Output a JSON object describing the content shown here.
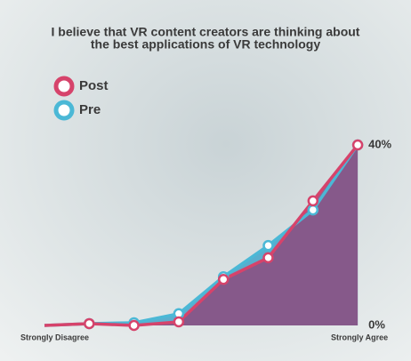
{
  "chart_data": {
    "type": "area",
    "title": [
      "I believe that VR content creators are thinking about",
      "the best applications of VR technology"
    ],
    "categories": [
      "Strongly Disagree",
      null,
      null,
      null,
      null,
      null,
      null,
      "Strongly Agree"
    ],
    "series": [
      {
        "name": "Pre",
        "color": "#4bb8d6",
        "values": [
          0,
          0.4,
          0.6,
          2.6,
          10.8,
          17.7,
          25.6,
          40
        ]
      },
      {
        "name": "Post",
        "color": "#d6436b",
        "values": [
          0,
          0.4,
          0,
          0.8,
          10.2,
          15,
          27.6,
          40
        ]
      }
    ],
    "ylim": [
      0,
      40
    ],
    "yticks": [
      {
        "value": 0,
        "label": "0%"
      },
      {
        "value": 40,
        "label": "40%"
      }
    ]
  }
}
